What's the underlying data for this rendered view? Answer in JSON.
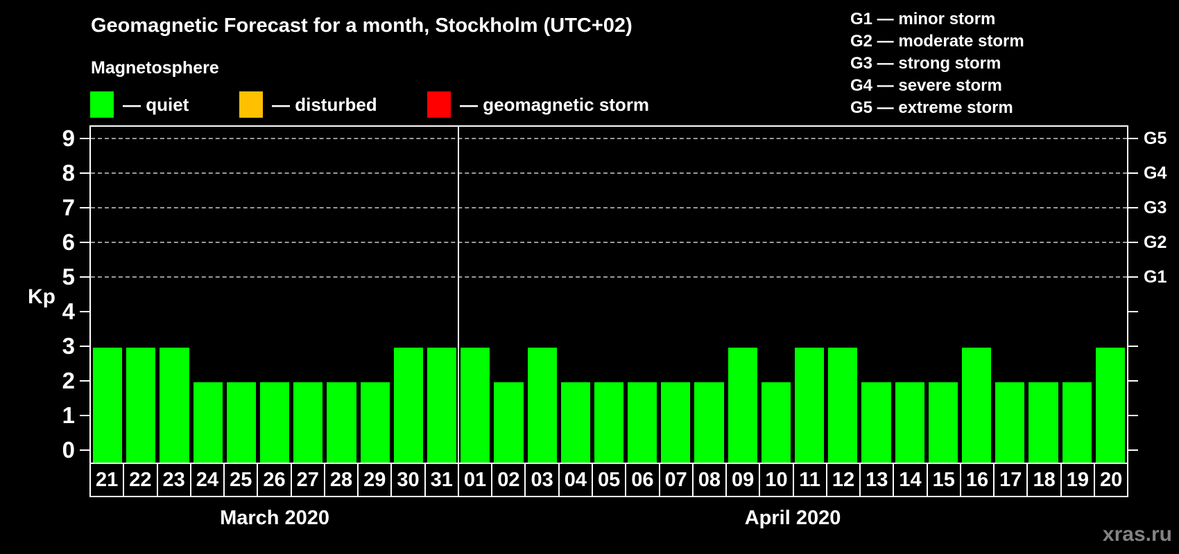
{
  "title": "Geomagnetic Forecast for a month, Stockholm (UTC+02)",
  "subtitle": "Magnetosphere",
  "condition_legend": [
    {
      "name": "quiet",
      "label": "— quiet",
      "color": "#00ff00"
    },
    {
      "name": "disturbed",
      "label": "— disturbed",
      "color": "#ffc000"
    },
    {
      "name": "geomagnetic-storm",
      "label": "— geomagnetic storm",
      "color": "#ff0000"
    }
  ],
  "g_scale_legend": [
    "G1 — minor storm",
    "G2 — moderate storm",
    "G3 — strong storm",
    "G4 — severe storm",
    "G5 — extreme storm"
  ],
  "watermark": "xras.ru",
  "chart_data": {
    "type": "bar",
    "ylabel": "Kp",
    "ylim": [
      0,
      9
    ],
    "y_ticks": [
      0,
      1,
      2,
      3,
      4,
      5,
      6,
      7,
      8,
      9
    ],
    "gridlines_at_kp": [
      5,
      6,
      7,
      8,
      9
    ],
    "grid_style": "dashed",
    "right_axis": [
      {
        "kp": 5,
        "label": "G1"
      },
      {
        "kp": 6,
        "label": "G2"
      },
      {
        "kp": 7,
        "label": "G3"
      },
      {
        "kp": 8,
        "label": "G4"
      },
      {
        "kp": 9,
        "label": "G5"
      }
    ],
    "bar_colors": {
      "quiet": "#00ff00",
      "disturbed": "#ffc000",
      "storm": "#ff0000"
    },
    "months": [
      {
        "label": "March 2020",
        "days": [
          "21",
          "22",
          "23",
          "24",
          "25",
          "26",
          "27",
          "28",
          "29",
          "30",
          "31"
        ],
        "kp_values": [
          3,
          3,
          3,
          2,
          2,
          2,
          2,
          2,
          2,
          3,
          3
        ]
      },
      {
        "label": "April 2020",
        "days": [
          "01",
          "02",
          "03",
          "04",
          "05",
          "06",
          "07",
          "08",
          "09",
          "10",
          "11",
          "12",
          "13",
          "14",
          "15",
          "16",
          "17",
          "18",
          "19",
          "20"
        ],
        "kp_values": [
          3,
          2,
          3,
          2,
          2,
          2,
          2,
          2,
          3,
          2,
          3,
          3,
          2,
          2,
          2,
          3,
          2,
          2,
          2,
          3
        ]
      }
    ]
  }
}
